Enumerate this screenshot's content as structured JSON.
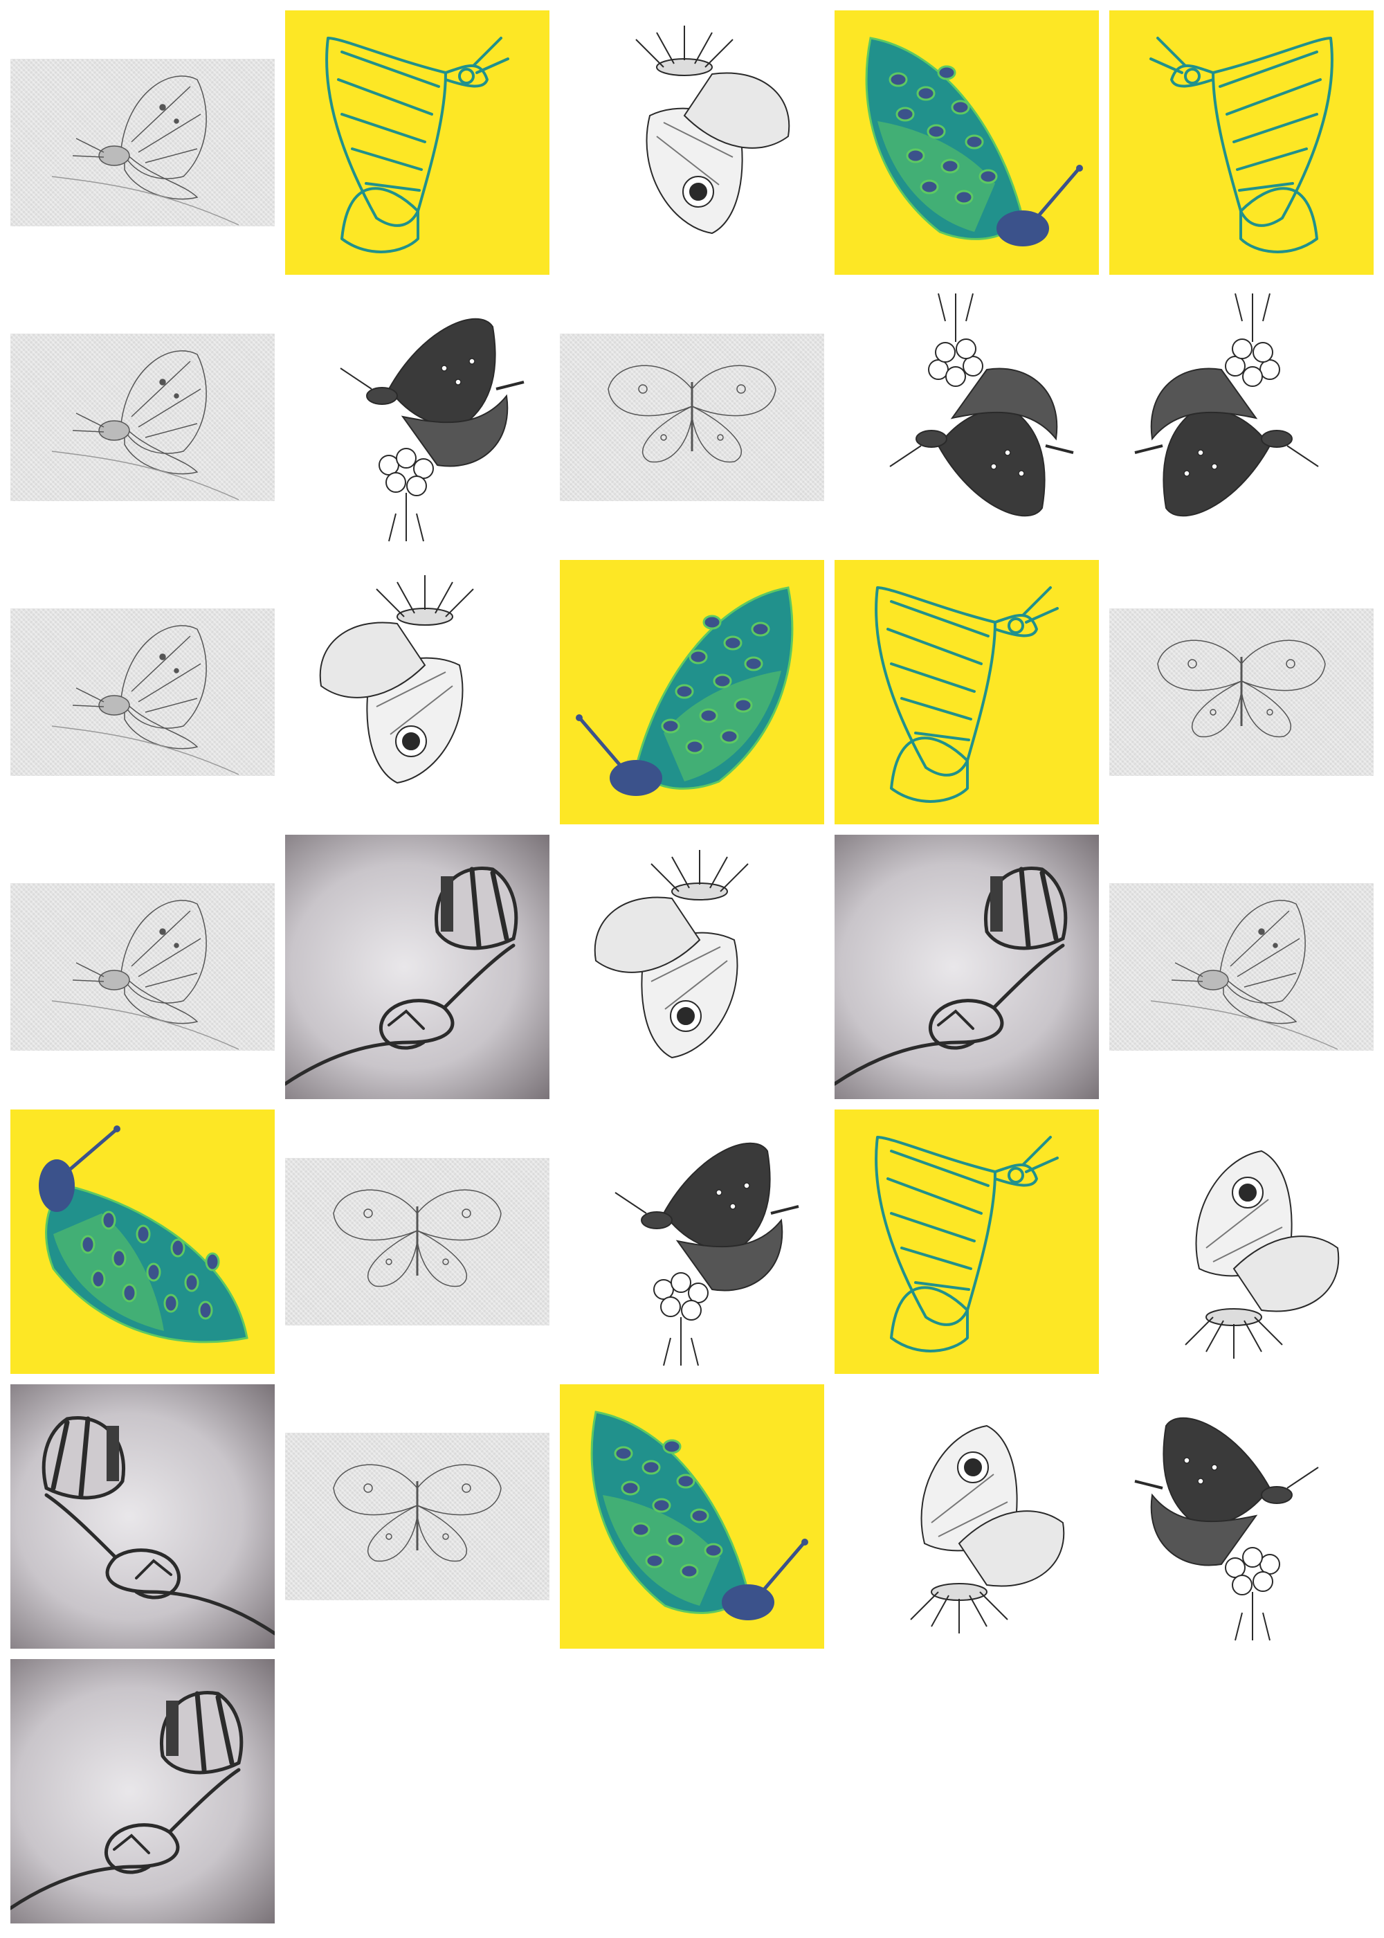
{
  "gallery": {
    "tiles": [
      {
        "style": "pencil-paper",
        "subject": "butterfly-side"
      },
      {
        "style": "yellow-line",
        "subject": "butterfly-line"
      },
      {
        "style": "ink-white",
        "subject": "butterfly-eyespot-flower"
      },
      {
        "style": "yellow-color",
        "subject": "butterfly-color"
      },
      {
        "style": "yellow-line",
        "subject": "butterfly-line"
      },
      {
        "style": "pencil-paper",
        "subject": "butterfly-side"
      },
      {
        "style": "ink-white",
        "subject": "swallowtail-flower"
      },
      {
        "style": "pencil-paper",
        "subject": "butterfly-open"
      },
      {
        "style": "ink-white",
        "subject": "swallowtail-flower-inverted"
      },
      {
        "style": "ink-white",
        "subject": "swallowtail-flower-inverted"
      },
      {
        "style": "pencil-paper",
        "subject": "butterfly-side"
      },
      {
        "style": "ink-white",
        "subject": "butterfly-eyespot-flower"
      },
      {
        "style": "yellow-color",
        "subject": "butterfly-color"
      },
      {
        "style": "yellow-line",
        "subject": "butterfly-line"
      },
      {
        "style": "pencil-paper",
        "subject": "butterfly-open"
      },
      {
        "style": "pencil-paper",
        "subject": "butterfly-side"
      },
      {
        "style": "charcoal",
        "subject": "hand-butterfly"
      },
      {
        "style": "ink-white",
        "subject": "butterfly-eyespot-flower"
      },
      {
        "style": "charcoal",
        "subject": "hand-butterfly"
      },
      {
        "style": "pencil-paper",
        "subject": "butterfly-side"
      },
      {
        "style": "yellow-color",
        "subject": "butterfly-color"
      },
      {
        "style": "pencil-paper",
        "subject": "butterfly-open"
      },
      {
        "style": "ink-white",
        "subject": "swallowtail-flower"
      },
      {
        "style": "yellow-line",
        "subject": "butterfly-line"
      },
      {
        "style": "ink-white",
        "subject": "butterfly-eyespot-flower"
      },
      {
        "style": "charcoal",
        "subject": "hand-butterfly"
      },
      {
        "style": "pencil-paper",
        "subject": "butterfly-open"
      },
      {
        "style": "yellow-color",
        "subject": "butterfly-color"
      },
      {
        "style": "ink-white",
        "subject": "butterfly-eyespot-flower"
      },
      {
        "style": "ink-white",
        "subject": "swallowtail-flower"
      },
      {
        "style": "charcoal",
        "subject": "hand-butterfly"
      }
    ]
  },
  "colors": {
    "yellow": "#fde725",
    "teal": "#21918c",
    "green": "#5ec962",
    "purple": "#3b528b",
    "ink": "#2a2a2a",
    "paper": "#e3e3e3"
  }
}
